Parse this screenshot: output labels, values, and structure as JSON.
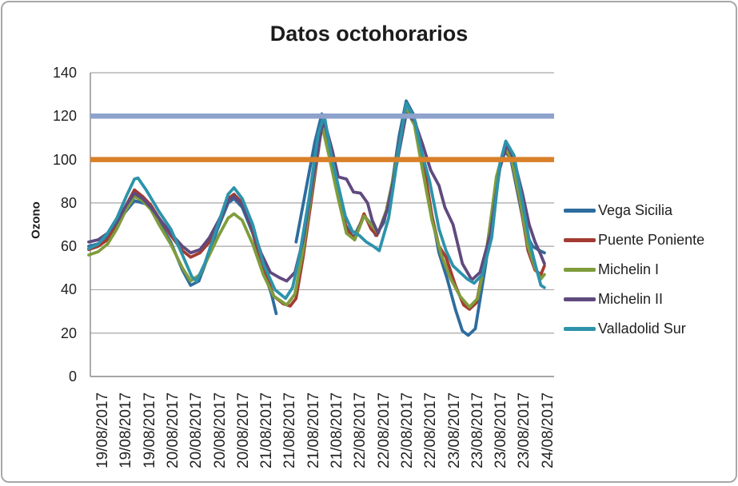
{
  "chart_data": {
    "type": "line",
    "title": "Datos octohorarios",
    "ylabel": "Ozono",
    "ylim": [
      0,
      140
    ],
    "y_ticks": [
      0,
      20,
      40,
      60,
      80,
      100,
      120,
      140
    ],
    "grid": true,
    "legend_position": "right",
    "gridline_color": "#a6a6a6",
    "axis_color": "#898989",
    "x_tick_labels": [
      "19/08/2017",
      "19/08/2017",
      "19/08/2017",
      "20/08/2017",
      "20/08/2017",
      "20/08/2017",
      "20/08/2017",
      "21/08/2017",
      "21/08/2017",
      "21/08/2017",
      "21/08/2017",
      "22/08/2017",
      "22/08/2017",
      "22/08/2017",
      "22/08/2017",
      "23/08/2017",
      "23/08/2017",
      "23/08/2017",
      "23/08/2017",
      "24/08/2017"
    ],
    "reference_lines": [
      {
        "value": 120,
        "color": "#8ea2cc"
      },
      {
        "value": 100,
        "color": "#d8802a"
      }
    ],
    "series": [
      {
        "name": "Vega Sicilia",
        "color": "#2e6c9e",
        "points": [
          [
            0,
            60
          ],
          [
            0.35,
            61
          ],
          [
            0.7,
            62.5
          ],
          [
            1.1,
            69
          ],
          [
            1.5,
            75
          ],
          [
            1.95,
            81
          ],
          [
            2.3,
            80
          ],
          [
            2.6,
            79
          ],
          [
            3.0,
            71
          ],
          [
            3.5,
            62
          ],
          [
            4.0,
            49
          ],
          [
            4.35,
            42
          ],
          [
            4.7,
            44
          ],
          [
            5.05,
            54
          ],
          [
            5.5,
            68
          ],
          [
            5.95,
            80
          ],
          [
            6.2,
            82
          ],
          [
            6.55,
            78
          ],
          [
            7.0,
            66
          ],
          [
            7.45,
            49
          ],
          [
            7.8,
            38
          ],
          [
            8.0,
            29
          ],
          null,
          [
            8.85,
            62
          ],
          [
            9.25,
            85
          ],
          [
            9.65,
            108
          ],
          [
            9.95,
            121
          ],
          [
            10.15,
            110
          ],
          [
            10.3,
            103
          ],
          [
            10.6,
            88
          ],
          [
            10.95,
            70
          ],
          [
            11.3,
            64
          ],
          [
            11.75,
            74
          ],
          [
            12.0,
            71
          ],
          [
            12.25,
            65
          ],
          [
            12.6,
            71
          ],
          [
            12.95,
            89
          ],
          [
            13.25,
            111
          ],
          [
            13.55,
            127
          ],
          [
            13.85,
            121
          ],
          [
            14.15,
            104
          ],
          [
            14.55,
            80
          ],
          [
            14.95,
            57
          ],
          [
            15.3,
            45
          ],
          [
            15.65,
            31
          ],
          [
            15.95,
            21
          ],
          [
            16.2,
            19
          ],
          [
            16.5,
            22
          ],
          [
            16.95,
            52
          ],
          [
            17.35,
            86
          ],
          [
            17.7,
            104
          ],
          [
            18.0,
            101
          ],
          [
            18.3,
            85
          ],
          [
            18.65,
            66
          ],
          [
            18.95,
            60
          ],
          [
            19.25,
            58
          ],
          [
            19.45,
            57
          ]
        ]
      },
      {
        "name": "Puente Poniente",
        "color": "#a33b32",
        "points": [
          [
            0,
            58.5
          ],
          [
            0.4,
            60
          ],
          [
            0.8,
            63
          ],
          [
            1.2,
            70
          ],
          [
            1.6,
            79
          ],
          [
            1.95,
            86
          ],
          [
            2.3,
            83
          ],
          [
            2.65,
            79
          ],
          [
            3.0,
            73
          ],
          [
            3.5,
            65
          ],
          [
            4.0,
            58
          ],
          [
            4.35,
            55
          ],
          [
            4.75,
            57
          ],
          [
            5.15,
            62
          ],
          [
            5.55,
            71
          ],
          [
            5.95,
            82
          ],
          [
            6.2,
            84
          ],
          [
            6.55,
            80
          ],
          [
            7.0,
            67
          ],
          [
            7.45,
            50
          ],
          [
            7.9,
            37
          ],
          [
            8.3,
            33.5
          ],
          [
            8.6,
            32.5
          ],
          [
            8.85,
            36
          ],
          [
            9.15,
            55
          ],
          [
            9.55,
            85
          ],
          [
            9.95,
            115.5
          ],
          [
            10.25,
            104
          ],
          [
            10.65,
            85
          ],
          [
            11.0,
            68
          ],
          [
            11.35,
            63
          ],
          [
            11.75,
            75
          ],
          [
            12.05,
            68
          ],
          [
            12.3,
            65
          ],
          [
            12.65,
            74
          ],
          [
            13.05,
            93
          ],
          [
            13.4,
            116
          ],
          [
            13.65,
            123
          ],
          [
            13.95,
            117
          ],
          [
            14.3,
            98
          ],
          [
            14.65,
            74
          ],
          [
            14.95,
            60
          ],
          [
            15.25,
            55
          ],
          [
            15.65,
            42
          ],
          [
            16.0,
            33
          ],
          [
            16.25,
            31
          ],
          [
            16.55,
            34
          ],
          [
            16.95,
            56
          ],
          [
            17.4,
            90
          ],
          [
            17.75,
            105
          ],
          [
            18.05,
            100
          ],
          [
            18.4,
            81
          ],
          [
            18.75,
            58
          ],
          [
            19.05,
            49
          ],
          [
            19.3,
            47
          ],
          [
            19.45,
            51
          ]
        ]
      },
      {
        "name": "Michelin I",
        "color": "#7f9d3c",
        "points": [
          [
            0,
            56
          ],
          [
            0.4,
            57.5
          ],
          [
            0.8,
            61
          ],
          [
            1.2,
            68
          ],
          [
            1.6,
            77
          ],
          [
            1.95,
            83
          ],
          [
            2.3,
            81
          ],
          [
            2.65,
            77
          ],
          [
            3.0,
            70
          ],
          [
            3.5,
            61
          ],
          [
            4.0,
            50
          ],
          [
            4.35,
            44
          ],
          [
            4.75,
            47
          ],
          [
            5.15,
            56
          ],
          [
            5.55,
            65
          ],
          [
            5.95,
            73
          ],
          [
            6.2,
            75
          ],
          [
            6.55,
            72
          ],
          [
            7.0,
            61
          ],
          [
            7.45,
            47
          ],
          [
            7.9,
            37
          ],
          [
            8.45,
            33
          ],
          [
            8.8,
            38
          ],
          [
            9.15,
            58
          ],
          [
            9.55,
            88
          ],
          [
            9.95,
            116
          ],
          [
            10.25,
            102
          ],
          [
            10.65,
            82
          ],
          [
            11.0,
            66
          ],
          [
            11.35,
            63
          ],
          [
            11.75,
            74
          ],
          [
            12.05,
            70
          ],
          [
            12.35,
            66
          ],
          [
            12.75,
            78
          ],
          [
            13.15,
            100
          ],
          [
            13.55,
            123
          ],
          [
            13.9,
            116
          ],
          [
            14.25,
            95
          ],
          [
            14.65,
            72
          ],
          [
            15.05,
            56
          ],
          [
            15.45,
            45
          ],
          [
            15.85,
            37
          ],
          [
            16.25,
            32
          ],
          [
            16.6,
            36
          ],
          [
            16.95,
            55
          ],
          [
            17.4,
            92
          ],
          [
            17.75,
            106
          ],
          [
            18.05,
            100
          ],
          [
            18.4,
            82
          ],
          [
            18.75,
            60
          ],
          [
            19.05,
            50
          ],
          [
            19.3,
            45
          ],
          [
            19.45,
            47
          ]
        ]
      },
      {
        "name": "Michelin II",
        "color": "#5f4a7e",
        "points": [
          [
            0,
            62
          ],
          [
            0.4,
            63
          ],
          [
            0.8,
            66
          ],
          [
            1.2,
            71
          ],
          [
            1.6,
            79
          ],
          [
            1.95,
            84.5
          ],
          [
            2.3,
            82
          ],
          [
            2.65,
            78
          ],
          [
            3.0,
            73
          ],
          [
            3.5,
            66
          ],
          [
            4.0,
            60
          ],
          [
            4.35,
            57
          ],
          [
            4.75,
            58.5
          ],
          [
            5.15,
            64
          ],
          [
            5.55,
            72
          ],
          [
            5.95,
            81
          ],
          [
            6.2,
            83
          ],
          [
            6.55,
            79
          ],
          [
            7.0,
            68
          ],
          [
            7.35,
            57
          ],
          [
            7.75,
            48
          ],
          [
            8.15,
            45.5
          ],
          [
            8.45,
            44
          ],
          [
            8.8,
            48
          ],
          [
            9.15,
            63
          ],
          [
            9.55,
            90
          ],
          [
            9.95,
            115
          ],
          [
            10.1,
            116
          ],
          [
            10.4,
            104
          ],
          [
            10.65,
            92
          ],
          [
            11.0,
            91
          ],
          [
            11.3,
            85
          ],
          [
            11.6,
            84.5
          ],
          [
            11.9,
            80
          ],
          [
            12.1,
            72
          ],
          [
            12.35,
            66
          ],
          [
            12.75,
            77
          ],
          [
            13.15,
            98
          ],
          [
            13.55,
            121
          ],
          [
            13.9,
            118
          ],
          [
            14.25,
            107
          ],
          [
            14.6,
            95
          ],
          [
            14.95,
            88
          ],
          [
            15.2,
            78
          ],
          [
            15.55,
            70
          ],
          [
            15.95,
            52
          ],
          [
            16.35,
            44.5
          ],
          [
            16.7,
            48
          ],
          [
            17.15,
            66
          ],
          [
            17.55,
            96
          ],
          [
            17.85,
            107
          ],
          [
            18.15,
            100
          ],
          [
            18.5,
            85
          ],
          [
            18.8,
            70
          ],
          [
            19.05,
            62
          ],
          [
            19.3,
            56
          ],
          [
            19.45,
            52
          ]
        ]
      },
      {
        "name": "Valladolid Sur",
        "color": "#2d93ab",
        "points": [
          [
            0,
            59
          ],
          [
            0.4,
            61
          ],
          [
            0.8,
            66
          ],
          [
            1.2,
            73
          ],
          [
            1.6,
            83
          ],
          [
            1.95,
            91
          ],
          [
            2.1,
            91.5
          ],
          [
            2.45,
            86
          ],
          [
            3.0,
            76
          ],
          [
            3.5,
            68
          ],
          [
            4.0,
            56
          ],
          [
            4.4,
            46
          ],
          [
            4.6,
            44
          ],
          [
            4.95,
            52
          ],
          [
            5.45,
            68
          ],
          [
            5.95,
            84
          ],
          [
            6.2,
            87
          ],
          [
            6.55,
            82
          ],
          [
            7.0,
            70
          ],
          [
            7.45,
            52
          ],
          [
            7.95,
            40
          ],
          [
            8.4,
            36
          ],
          [
            8.7,
            41
          ],
          [
            9.0,
            56
          ],
          [
            9.4,
            82
          ],
          [
            9.8,
            112
          ],
          [
            10.05,
            120.5
          ],
          [
            10.35,
            102
          ],
          [
            10.65,
            88
          ],
          [
            10.95,
            74
          ],
          [
            11.25,
            67
          ],
          [
            11.55,
            65
          ],
          [
            11.85,
            62
          ],
          [
            12.15,
            60
          ],
          [
            12.4,
            58
          ],
          [
            12.8,
            73
          ],
          [
            13.2,
            102
          ],
          [
            13.55,
            126
          ],
          [
            13.9,
            119
          ],
          [
            14.2,
            104
          ],
          [
            14.55,
            90
          ],
          [
            14.95,
            68
          ],
          [
            15.25,
            58
          ],
          [
            15.55,
            51
          ],
          [
            15.85,
            48
          ],
          [
            16.15,
            45
          ],
          [
            16.45,
            43
          ],
          [
            16.8,
            47
          ],
          [
            17.2,
            64
          ],
          [
            17.55,
            98
          ],
          [
            17.8,
            108.5
          ],
          [
            18.15,
            102
          ],
          [
            18.45,
            84
          ],
          [
            18.8,
            63
          ],
          [
            19.05,
            52
          ],
          [
            19.3,
            42
          ],
          [
            19.45,
            41
          ]
        ]
      }
    ]
  }
}
